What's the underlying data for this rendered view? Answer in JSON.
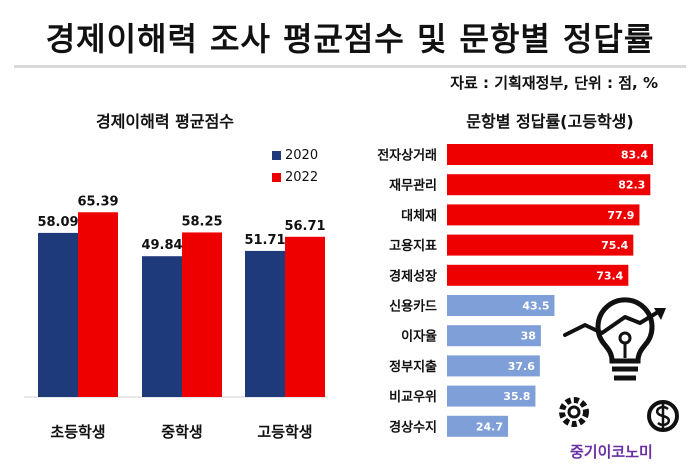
{
  "header": {
    "title": "경제이해력 조사 평균점수 및 문항별 정답률",
    "source": "자료 : 기획재정부, 단위 : 점, %"
  },
  "branding": {
    "logo_text": "중기이코노미"
  },
  "colors": {
    "series_2020": "#1f3a7a",
    "series_2022": "#ee0000",
    "high_bar": "#ee0000",
    "low_bar": "#7f9fd8"
  },
  "chart_data": [
    {
      "type": "bar",
      "title": "경제이해력 평균점수",
      "categories": [
        "초등학생",
        "중학생",
        "고등학생"
      ],
      "series": [
        {
          "name": "2020",
          "values": [
            58.09,
            49.84,
            51.71
          ]
        },
        {
          "name": "2022",
          "values": [
            65.39,
            58.25,
            56.71
          ]
        }
      ],
      "ylim": [
        0,
        80
      ],
      "legend": "top-right",
      "grid": false
    },
    {
      "type": "bar",
      "orientation": "horizontal",
      "title": "문항별 정답률(고등학생)",
      "categories": [
        "전자상거래",
        "재무관리",
        "대체재",
        "고용지표",
        "경제성장",
        "신용카드",
        "이자율",
        "정부지출",
        "비교우위",
        "경상수지"
      ],
      "values": [
        83.4,
        82.3,
        77.9,
        75.4,
        73.4,
        43.5,
        38,
        37.6,
        35.8,
        24.7
      ],
      "xlim": [
        0,
        85
      ],
      "grid": false
    }
  ]
}
